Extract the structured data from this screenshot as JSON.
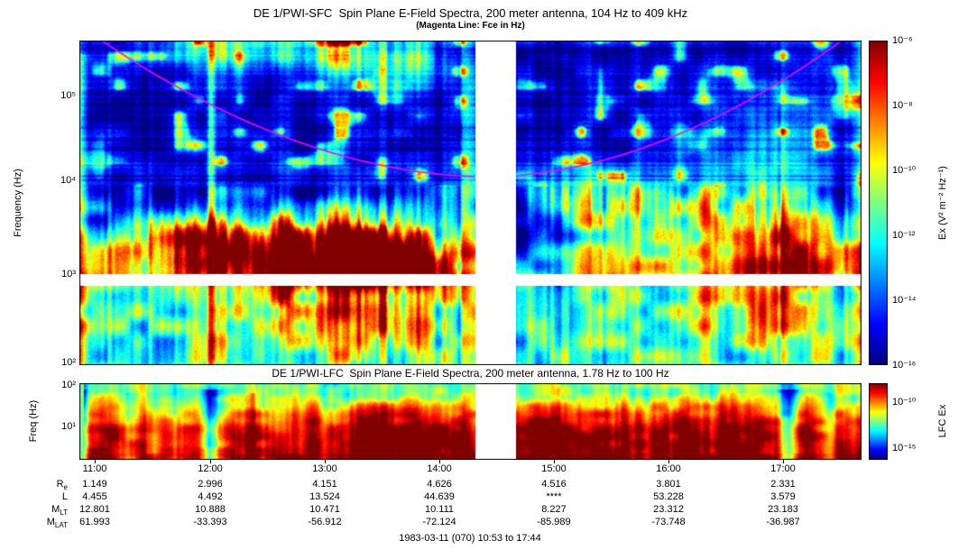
{
  "sfc": {
    "title": "DE 1/PWI-SFC  Spin Plane E-Field Spectra, 200 meter antenna, 104 Hz to 409 kHz",
    "subtitle": "(Magenta Line: Fce in Hz)",
    "ylabel": "Frequency (Hz)",
    "yticks": [
      "10⁵",
      "10⁴",
      "10³",
      "10²"
    ],
    "colorbar": {
      "label": "Ex (V² m⁻² Hz⁻¹)",
      "ticks": [
        "10⁻⁶",
        "10⁻⁸",
        "10⁻¹⁰",
        "10⁻¹²",
        "10⁻¹⁴",
        "10⁻¹⁶"
      ]
    }
  },
  "lfc": {
    "title": "DE 1/PWI-LFC  Spin Plane E-Field Spectra, 200 meter antenna, 1.78 Hz to 100 Hz",
    "ylabel": "Freq (Hz)",
    "yticks": [
      "10²",
      "10¹"
    ],
    "colorbar": {
      "label": "LFC Ex",
      "ticks": [
        "10⁻¹⁰",
        "10⁻¹⁵"
      ]
    }
  },
  "time_axis": {
    "ticks": [
      "11:00",
      "12:00",
      "13:00",
      "14:00",
      "15:00",
      "16:00",
      "17:00"
    ]
  },
  "ephemeris": {
    "rows": [
      {
        "label": "R",
        "sub": "e",
        "values": [
          "1.149",
          "2.996",
          "4.151",
          "4.626",
          "4.516",
          "3.801",
          "2.331"
        ]
      },
      {
        "label": "L",
        "sub": "",
        "values": [
          "4.455",
          "4.492",
          "13.524",
          "44.639",
          "****",
          "53.228",
          "3.579"
        ]
      },
      {
        "label": "M",
        "sub": "LT",
        "values": [
          "12.801",
          "10.888",
          "10.471",
          "10.111",
          "8.227",
          "23.312",
          "23.183"
        ]
      },
      {
        "label": "M",
        "sub": "LAT",
        "values": [
          "61.993",
          "-33.393",
          "-56.912",
          "-72.124",
          "-85.989",
          "-73.748",
          "-36.987"
        ]
      }
    ]
  },
  "caption": "1983-03-11 (070) 10:53 to 17:44",
  "chart_data": [
    {
      "type": "heatmap",
      "name": "SFC spectrogram",
      "title": "DE 1/PWI-SFC  Spin Plane E-Field Spectra, 200 meter antenna, 104 Hz to 409 kHz",
      "subtitle": "(Magenta Line: Fce in Hz)",
      "ylabel": "Frequency (Hz)",
      "y_scale": "log",
      "y_range_hz": [
        104,
        409000
      ],
      "y_ticks_hz": [
        100000,
        10000,
        1000,
        100
      ],
      "x_range": [
        "10:53",
        "17:44"
      ],
      "x_ticks": [
        "11:00",
        "12:00",
        "13:00",
        "14:00",
        "15:00",
        "16:00",
        "17:00"
      ],
      "colormap": "jet",
      "colorbar_label": "Ex (V^2 m^-2 Hz^-1)",
      "colorbar_ticks": [
        1e-06,
        1e-08,
        1e-10,
        1e-12,
        1e-14,
        1e-16
      ],
      "data_gap_ut": [
        "14:20",
        "14:45"
      ],
      "instrument_gap_hz": [
        900,
        1000
      ],
      "overlay_line": {
        "label": "Fce in Hz",
        "color": "#FF00FF",
        "description": "Electron cyclotron frequency: enters plot top near 11:05, dips to ~15 kHz near 14:30 (apogee), exits plot top near 17:30"
      },
      "features": "Intense (yellow/red) broadband emission 0.3-3 kHz from ~12:30-14:20; cyan/green chorus patches 3-10 kHz from ~15:30-17:00; bright full-band columns at orbit start and end; dark blue background above Fce"
    },
    {
      "type": "heatmap",
      "name": "LFC spectrogram",
      "title": "DE 1/PWI-LFC  Spin Plane E-Field Spectra, 200 meter antenna, 1.78 Hz to 100 Hz",
      "ylabel": "Freq (Hz)",
      "y_scale": "log",
      "y_range_hz": [
        1.78,
        100
      ],
      "y_ticks_hz": [
        100,
        10
      ],
      "x_ticks": [
        "11:00",
        "12:00",
        "13:00",
        "14:00",
        "15:00",
        "16:00",
        "17:00"
      ],
      "colormap": "jet",
      "colorbar_label": "LFC Ex",
      "colorbar_ticks": [
        1e-10,
        1e-15
      ],
      "data_gap_ut": [
        "14:20",
        "14:45"
      ],
      "features": "Green near 100 Hz grading to intense red below ~10 Hz for most of the pass; strongest red columns 13:30-14:20 and 15:00-16:45; narrow green (quiet) columns near 12:00 and 16:55"
    },
    {
      "type": "table",
      "name": "orbit ephemeris",
      "columns": [
        "11:00",
        "12:00",
        "13:00",
        "14:00",
        "15:00",
        "16:00",
        "17:00"
      ],
      "rows": [
        {
          "name": "Re",
          "values": [
            1.149,
            2.996,
            4.151,
            4.626,
            4.516,
            3.801,
            2.331
          ]
        },
        {
          "name": "L",
          "values": [
            4.455,
            4.492,
            13.524,
            44.639,
            "****",
            53.228,
            3.579
          ]
        },
        {
          "name": "MLT",
          "values": [
            12.801,
            10.888,
            10.471,
            10.111,
            8.227,
            23.312,
            23.183
          ]
        },
        {
          "name": "MLAT",
          "values": [
            61.993,
            -33.393,
            -56.912,
            -72.124,
            -85.989,
            -73.748,
            -36.987
          ]
        }
      ],
      "caption": "1983-03-11 (070) 10:53 to 17:44"
    }
  ]
}
